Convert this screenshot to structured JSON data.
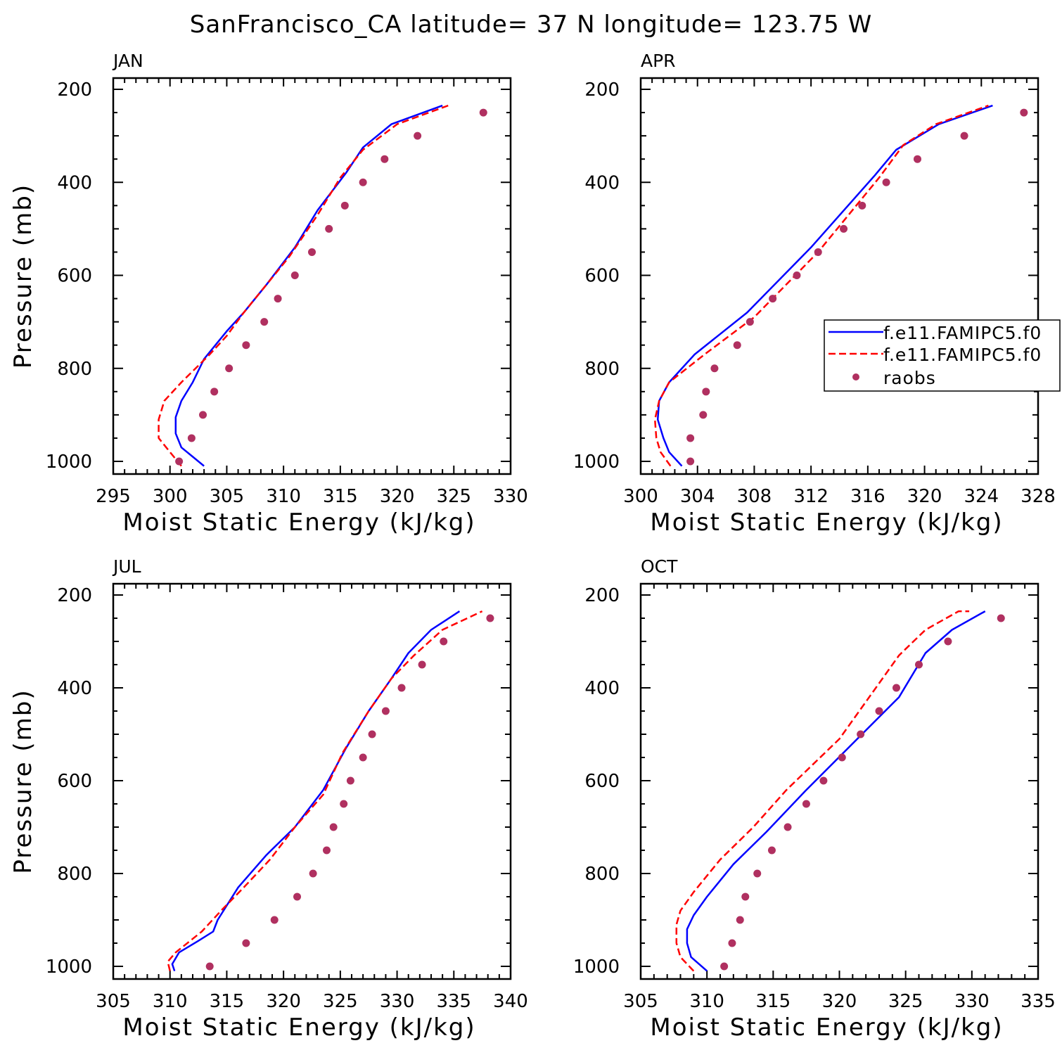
{
  "title": "SanFrancisco_CA  latitude= 37 N longitude= 123.75 W",
  "legend": {
    "entries": [
      {
        "label": "f.e11.FAMIPC5.f0",
        "color": "#0000ff",
        "style": "solid"
      },
      {
        "label": "f.e11.FAMIPC5.f0",
        "color": "#ff0000",
        "style": "dashed"
      },
      {
        "label": "raobs",
        "color": "#b03060",
        "style": "dot"
      }
    ]
  },
  "chart_data": [
    {
      "type": "line",
      "panel_label": "JAN",
      "xlabel": "Moist Static Energy (kJ/kg)",
      "ylabel": "Pressure (mb)",
      "xlim": [
        295,
        330
      ],
      "ylim": [
        1000,
        200
      ],
      "xticks": [
        "295",
        "300",
        "305",
        "310",
        "315",
        "320",
        "325",
        "330"
      ],
      "yticks": [
        "200",
        "400",
        "600",
        "800",
        "1000"
      ],
      "series": [
        {
          "style": "solid",
          "color": "#0000ff",
          "x": [
            303.0,
            302.0,
            301.0,
            300.5,
            300.5,
            301.0,
            302.0,
            303.0,
            305.0,
            306.5,
            308.5,
            311.0,
            313.0,
            315.5,
            317.0,
            319.5,
            324.0
          ],
          "y": [
            1010,
            990,
            970,
            940,
            905,
            870,
            830,
            780,
            720,
            680,
            620,
            540,
            460,
            380,
            325,
            275,
            235
          ]
        },
        {
          "style": "dashed",
          "color": "#ff0000",
          "x": [
            301.0,
            300.0,
            299.0,
            299.0,
            299.5,
            301.0,
            303.5,
            305.0,
            306.5,
            308.5,
            310.5,
            313.0,
            315.0,
            317.0,
            320.0,
            324.5
          ],
          "y": [
            1010,
            980,
            950,
            910,
            870,
            830,
            770,
            730,
            680,
            620,
            560,
            470,
            390,
            330,
            275,
            235
          ]
        },
        {
          "style": "dot",
          "color": "#b03060",
          "x": [
            300.8,
            301.9,
            302.9,
            303.9,
            305.2,
            306.7,
            308.3,
            309.5,
            311.0,
            312.5,
            314.0,
            315.4,
            317.0,
            318.9,
            321.8,
            327.6
          ],
          "y": [
            1000,
            950,
            900,
            850,
            800,
            750,
            700,
            650,
            600,
            550,
            500,
            450,
            400,
            350,
            300,
            250
          ]
        }
      ]
    },
    {
      "type": "line",
      "panel_label": "APR",
      "xlabel": "Moist Static Energy (kJ/kg)",
      "ylabel": "",
      "xlim": [
        300,
        328
      ],
      "ylim": [
        1000,
        200
      ],
      "xticks": [
        "300",
        "304",
        "308",
        "312",
        "316",
        "320",
        "324",
        "328"
      ],
      "yticks": [
        "200",
        "400",
        "600",
        "800",
        "1000"
      ],
      "series": [
        {
          "style": "solid",
          "color": "#0000ff",
          "x": [
            302.9,
            302.0,
            301.6,
            301.2,
            301.3,
            302.0,
            303.8,
            307.5,
            312.0,
            316.5,
            318.0,
            321.0,
            324.8
          ],
          "y": [
            1010,
            980,
            950,
            910,
            870,
            830,
            770,
            680,
            540,
            385,
            330,
            275,
            235
          ]
        },
        {
          "style": "dashed",
          "color": "#ff0000",
          "x": [
            302.1,
            301.4,
            301.1,
            301.0,
            301.3,
            302.0,
            304.5,
            308.0,
            312.5,
            316.8,
            318.5,
            320.8,
            324.5
          ],
          "y": [
            1010,
            980,
            950,
            910,
            870,
            830,
            770,
            690,
            550,
            390,
            320,
            275,
            235
          ]
        },
        {
          "style": "dot",
          "color": "#b03060",
          "x": [
            303.5,
            303.5,
            304.4,
            304.6,
            305.2,
            306.8,
            307.7,
            309.3,
            311.0,
            312.5,
            314.3,
            315.6,
            317.3,
            319.5,
            322.8,
            327.0
          ],
          "y": [
            1000,
            950,
            900,
            850,
            800,
            750,
            700,
            650,
            600,
            550,
            500,
            450,
            400,
            350,
            300,
            250
          ]
        }
      ]
    },
    {
      "type": "line",
      "panel_label": "JUL",
      "xlabel": "Moist Static Energy (kJ/kg)",
      "ylabel": "Pressure (mb)",
      "xlim": [
        305,
        340
      ],
      "ylim": [
        1000,
        200
      ],
      "xticks": [
        "305",
        "310",
        "315",
        "320",
        "325",
        "330",
        "335",
        "340"
      ],
      "yticks": [
        "200",
        "400",
        "600",
        "800",
        "1000"
      ],
      "series": [
        {
          "style": "solid",
          "color": "#0000ff",
          "x": [
            310.4,
            310.2,
            310.8,
            312.5,
            313.8,
            314.2,
            316.0,
            318.5,
            321.0,
            323.5,
            325.5,
            327.5,
            329.5,
            331.0,
            333.0,
            335.5
          ],
          "y": [
            1010,
            995,
            970,
            945,
            925,
            900,
            830,
            760,
            700,
            620,
            530,
            450,
            380,
            325,
            275,
            235
          ]
        },
        {
          "style": "dashed",
          "color": "#ff0000",
          "x": [
            310.0,
            309.8,
            310.5,
            312.8,
            314.5,
            316.5,
            318.8,
            321.0,
            323.5,
            325.2,
            327.5,
            329.5,
            331.5,
            334.0,
            337.5
          ],
          "y": [
            1010,
            990,
            970,
            925,
            880,
            830,
            770,
            700,
            630,
            540,
            450,
            380,
            330,
            275,
            235
          ]
        },
        {
          "style": "dot",
          "color": "#b03060",
          "x": [
            313.5,
            316.7,
            319.2,
            321.2,
            322.6,
            323.8,
            324.4,
            325.3,
            325.9,
            327.0,
            327.8,
            329.0,
            330.4,
            332.2,
            334.1,
            338.2
          ],
          "y": [
            1000,
            950,
            900,
            850,
            800,
            750,
            700,
            650,
            600,
            550,
            500,
            450,
            400,
            350,
            300,
            250
          ]
        }
      ]
    },
    {
      "type": "line",
      "panel_label": "OCT",
      "xlabel": "Moist Static Energy (kJ/kg)",
      "ylabel": "",
      "xlim": [
        305,
        335
      ],
      "ylim": [
        1000,
        200
      ],
      "xticks": [
        "305",
        "310",
        "315",
        "320",
        "325",
        "330",
        "335"
      ],
      "yticks": [
        "200",
        "400",
        "600",
        "800",
        "1000"
      ],
      "series": [
        {
          "style": "solid",
          "color": "#0000ff",
          "x": [
            310.0,
            308.8,
            308.5,
            308.5,
            309.0,
            310.0,
            312.0,
            314.5,
            317.5,
            321.0,
            324.5,
            326.5,
            328.5,
            331.0
          ],
          "y": [
            1010,
            980,
            950,
            920,
            890,
            850,
            780,
            710,
            620,
            520,
            420,
            325,
            275,
            235
          ]
        },
        {
          "style": "dashed",
          "color": "#ff0000",
          "x": [
            309.0,
            308.0,
            307.7,
            307.7,
            308.0,
            309.0,
            311.0,
            313.5,
            316.0,
            320.0,
            324.5,
            326.5,
            329.0,
            329.8
          ],
          "y": [
            1010,
            980,
            950,
            910,
            880,
            840,
            770,
            700,
            620,
            510,
            330,
            275,
            235,
            235
          ]
        },
        {
          "style": "dot",
          "color": "#b03060",
          "x": [
            311.3,
            311.9,
            312.5,
            312.9,
            313.8,
            314.9,
            316.1,
            317.5,
            318.8,
            320.2,
            321.6,
            323.0,
            324.3,
            326.0,
            328.2,
            332.2
          ],
          "y": [
            1000,
            950,
            900,
            850,
            800,
            750,
            700,
            650,
            600,
            550,
            500,
            450,
            400,
            350,
            300,
            250
          ]
        }
      ]
    }
  ]
}
